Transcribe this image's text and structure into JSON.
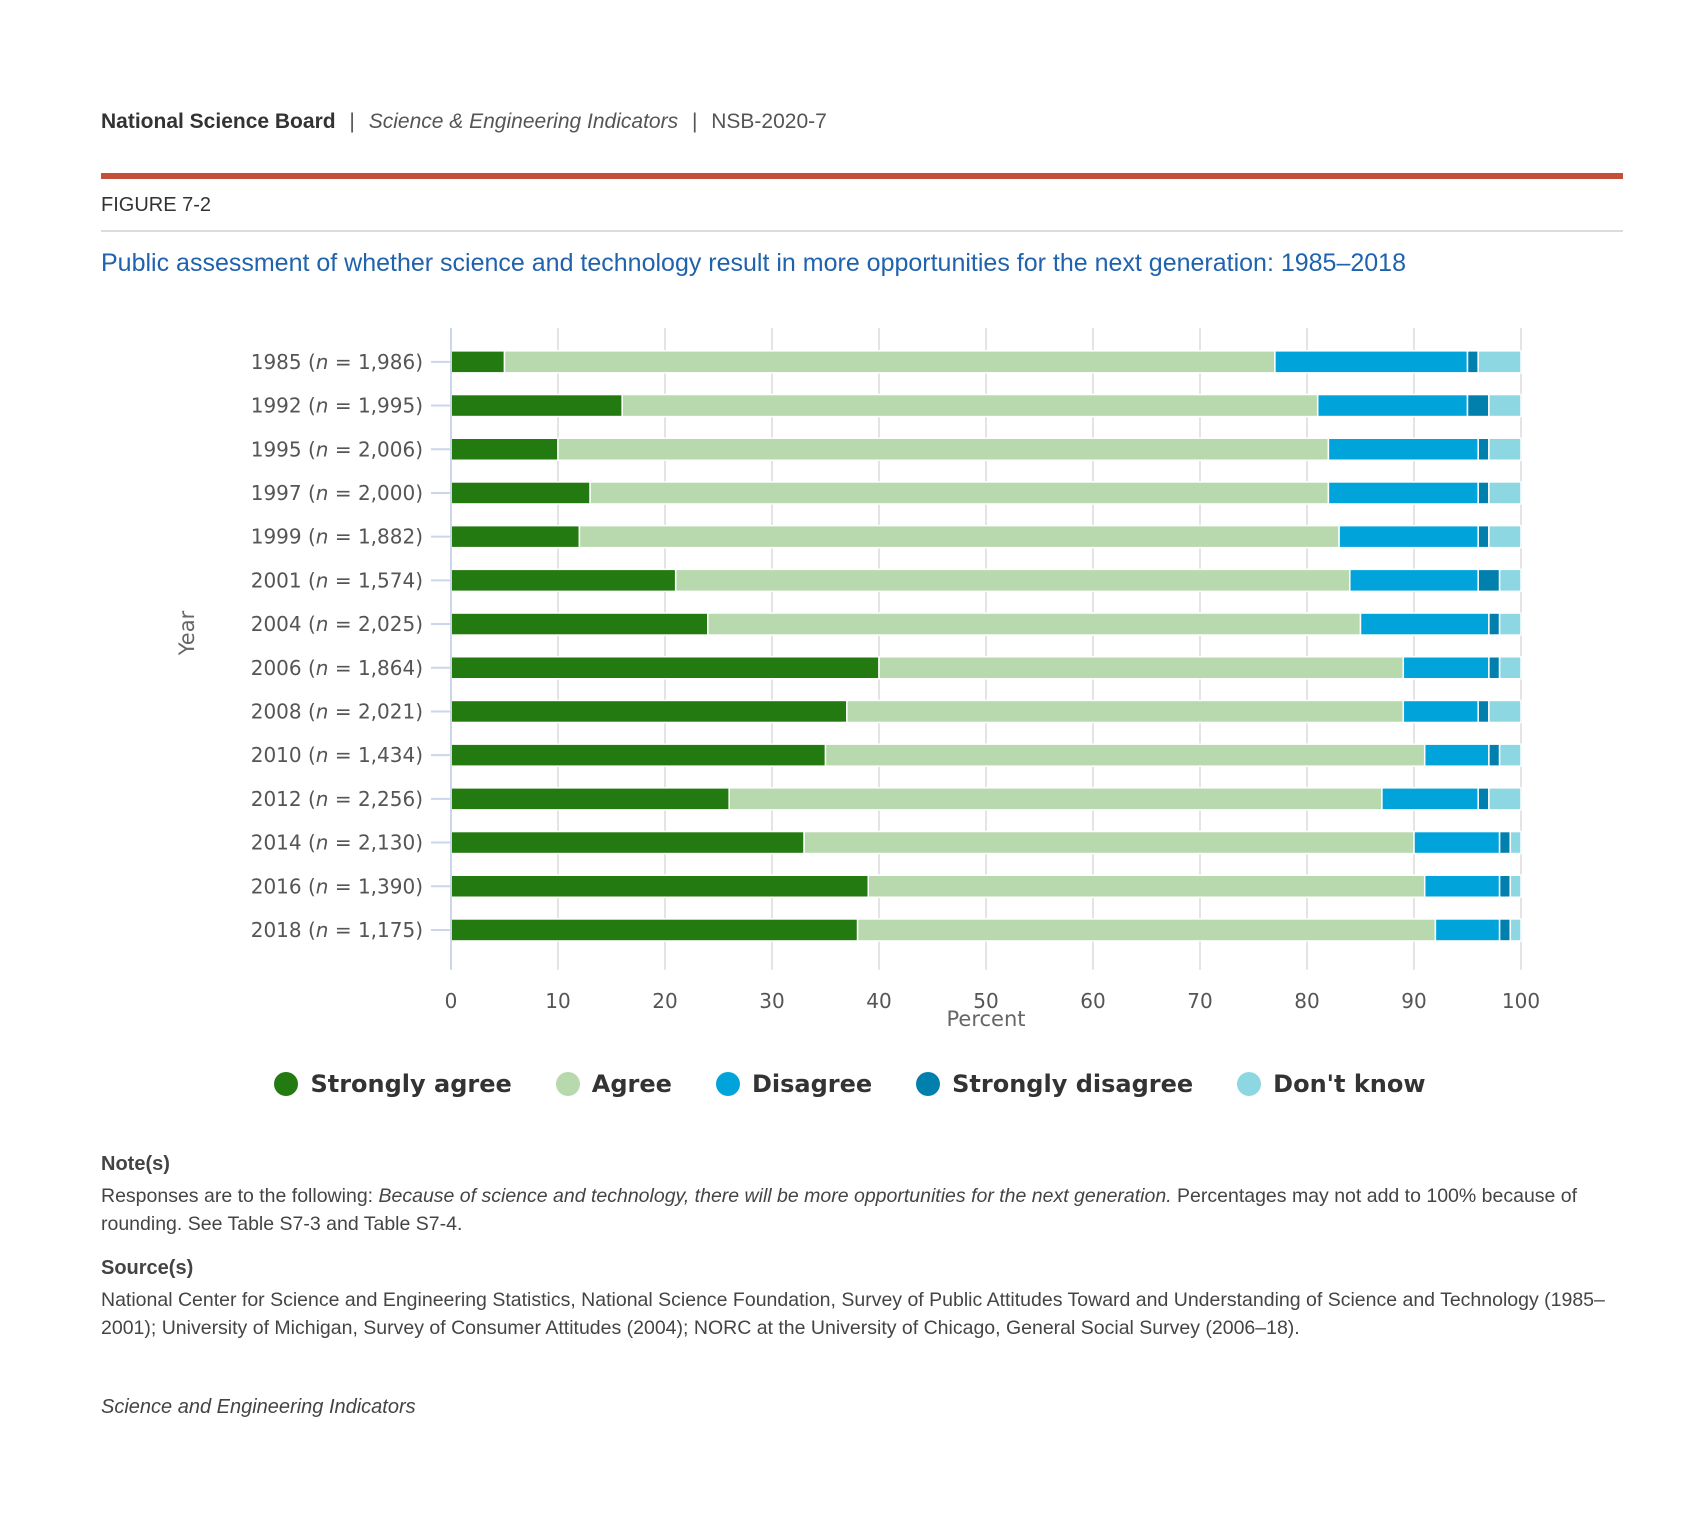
{
  "header": {
    "org": "National Science Board",
    "publication": "Science & Engineering Indicators",
    "report_code": "NSB-2020-7",
    "separator": "|"
  },
  "figure_label": "FIGURE 7-2",
  "colors": {
    "accent_line": "#c3513a",
    "title": "#1f62ad"
  },
  "chart_data": {
    "type": "bar",
    "orientation": "horizontal",
    "stacked": true,
    "title": "Public assessment of whether science and technology result in more opportunities for the next generation: 1985–2018",
    "xlabel": "Percent",
    "ylabel": "Year",
    "xlim": [
      0,
      100
    ],
    "xticks": [
      "0",
      "10",
      "20",
      "30",
      "40",
      "50",
      "60",
      "70",
      "80",
      "90",
      "100"
    ],
    "grid": true,
    "legend_position": "bottom",
    "categories": [
      {
        "year": "1985",
        "n": "1,986"
      },
      {
        "year": "1992",
        "n": "1,995"
      },
      {
        "year": "1995",
        "n": "2,006"
      },
      {
        "year": "1997",
        "n": "2,000"
      },
      {
        "year": "1999",
        "n": "1,882"
      },
      {
        "year": "2001",
        "n": "1,574"
      },
      {
        "year": "2004",
        "n": "2,025"
      },
      {
        "year": "2006",
        "n": "1,864"
      },
      {
        "year": "2008",
        "n": "2,021"
      },
      {
        "year": "2010",
        "n": "1,434"
      },
      {
        "year": "2012",
        "n": "2,256"
      },
      {
        "year": "2014",
        "n": "2,130"
      },
      {
        "year": "2016",
        "n": "1,390"
      },
      {
        "year": "2018",
        "n": "1,175"
      }
    ],
    "series": [
      {
        "name": "Strongly agree",
        "color": "#237a10",
        "values": [
          5,
          16,
          10,
          13,
          12,
          21,
          24,
          40,
          37,
          35,
          26,
          33,
          39,
          38
        ]
      },
      {
        "name": "Agree",
        "color": "#b8d8ae",
        "values": [
          72,
          65,
          72,
          69,
          71,
          63,
          61,
          49,
          52,
          56,
          61,
          57,
          52,
          54
        ]
      },
      {
        "name": "Disagree",
        "color": "#00a4db",
        "values": [
          18,
          14,
          14,
          14,
          13,
          12,
          12,
          8,
          7,
          6,
          9,
          8,
          7,
          6
        ]
      },
      {
        "name": "Strongly disagree",
        "color": "#0280ad",
        "values": [
          1,
          2,
          1,
          1,
          1,
          2,
          1,
          1,
          1,
          1,
          1,
          1,
          1,
          1
        ]
      },
      {
        "name": "Don't know",
        "color": "#8dd7e3",
        "values": [
          4,
          3,
          3,
          3,
          3,
          2,
          2,
          2,
          3,
          2,
          3,
          1,
          1,
          1
        ]
      }
    ]
  },
  "notes": {
    "heading": "Note(s)",
    "text_prefix": "Responses are to the following: ",
    "text_italic": "Because of science and technology, there will be more opportunities for the next generation.",
    "text_suffix": " Percentages may not add to 100% because of rounding. See Table S7-3 and Table S7-4."
  },
  "sources": {
    "heading": "Source(s)",
    "text": "National Center for Science and Engineering Statistics, National Science Foundation, Survey of Public Attitudes Toward and Understanding of Science and Technology (1985–2001); University of Michigan, Survey of Consumer Attitudes (2004); NORC at the University of Chicago, General Social Survey (2006–18)."
  },
  "footer": "Science and Engineering Indicators"
}
